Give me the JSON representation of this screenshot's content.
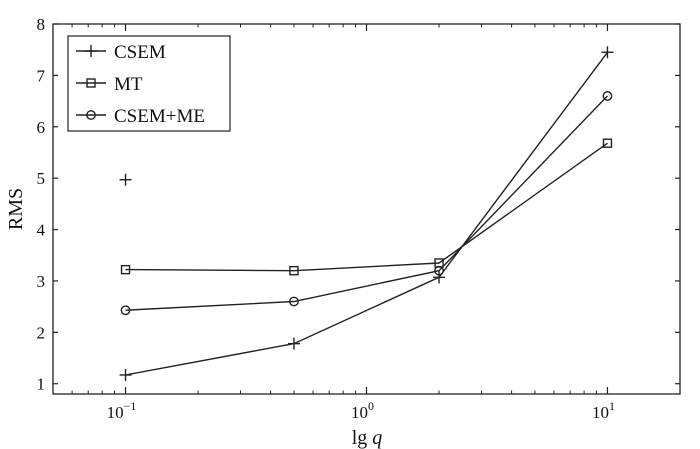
{
  "chart_data": {
    "type": "line",
    "title": "",
    "xlabel": "lg",
    "xlabel_var": "q",
    "ylabel": "RMS",
    "x_scale": "log",
    "xlim": [
      0.05,
      20
    ],
    "ylim": [
      0.8,
      8
    ],
    "x_ticks": [
      {
        "value": 0.1,
        "base": "10",
        "exp": "−1"
      },
      {
        "value": 1,
        "base": "10",
        "exp": "0"
      },
      {
        "value": 10,
        "base": "10",
        "exp": "1"
      }
    ],
    "y_ticks": [
      1,
      2,
      3,
      4,
      5,
      6,
      7,
      8
    ],
    "grid": false,
    "legend_position": "top-left",
    "series": [
      {
        "name": "CSEM",
        "marker": "plus",
        "color": "#222222",
        "points": [
          [
            0.1,
            1.17
          ],
          [
            0.5,
            1.78
          ],
          [
            2,
            3.07
          ],
          [
            10,
            7.45
          ]
        ],
        "extra_points": [
          [
            0.1,
            4.97
          ]
        ]
      },
      {
        "name": "MT",
        "marker": "square",
        "color": "#222222",
        "points": [
          [
            0.1,
            3.22
          ],
          [
            0.5,
            3.2
          ],
          [
            2,
            3.35
          ],
          [
            10,
            5.68
          ]
        ]
      },
      {
        "name": "CSEM+ME",
        "marker": "circle",
        "color": "#222222",
        "points": [
          [
            0.1,
            2.43
          ],
          [
            0.5,
            2.6
          ],
          [
            2,
            3.2
          ],
          [
            10,
            6.6
          ]
        ]
      }
    ]
  }
}
